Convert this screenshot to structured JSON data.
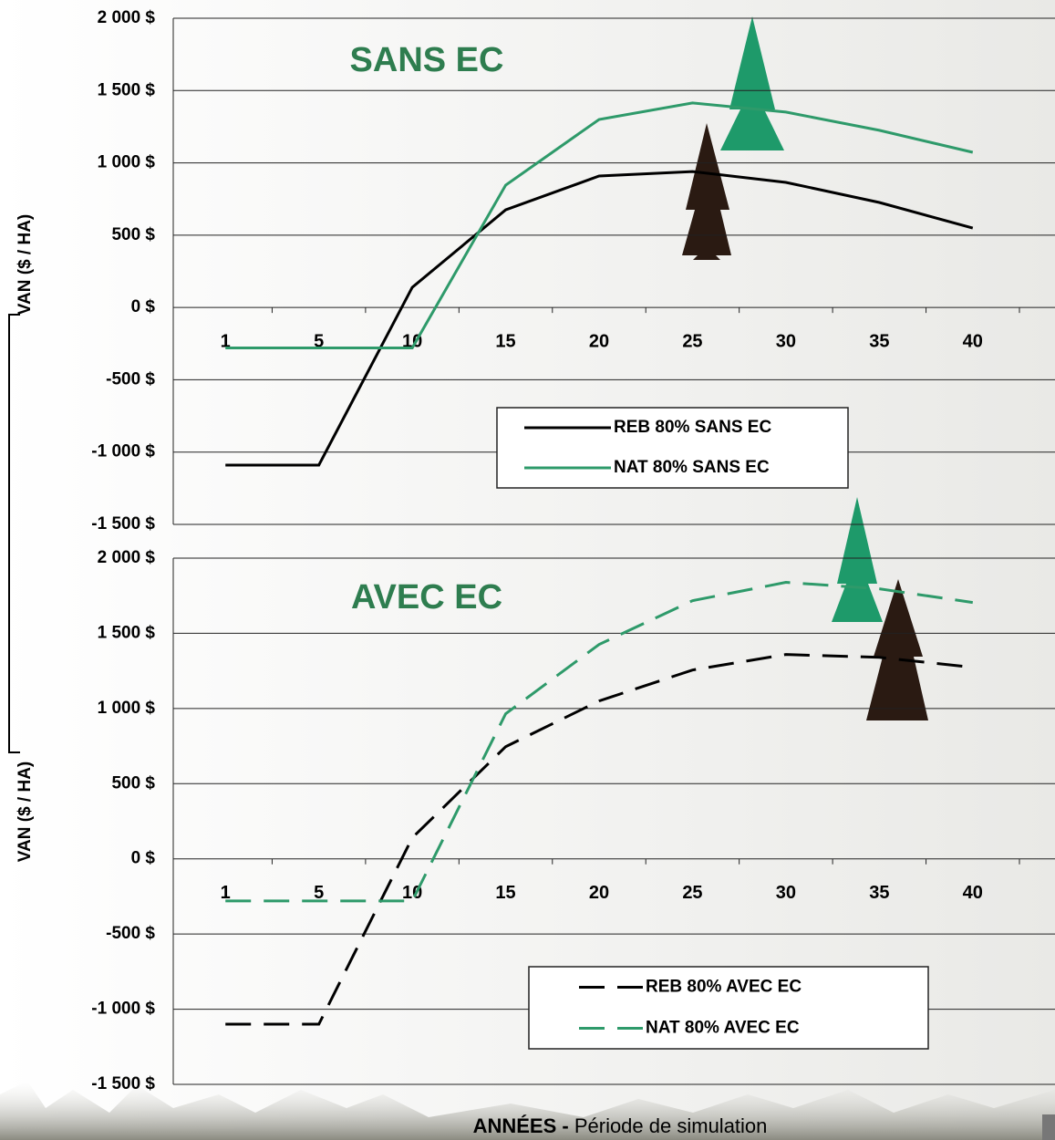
{
  "chart_data": [
    {
      "type": "line",
      "title": "SANS EC",
      "title_color": "#2e7d4f",
      "y_label": "VAN ($ / HA)",
      "categories": [
        "1",
        "5",
        "10",
        "15",
        "20",
        "25",
        "30",
        "35",
        "40"
      ],
      "series": [
        {
          "name": "REB 80% SANS EC",
          "color": "#000000",
          "dash": false,
          "values": [
            -1090,
            -1090,
            139,
            675,
            909,
            940,
            865,
            726,
            549
          ]
        },
        {
          "name": "NAT 80% SANS EC",
          "color": "#2e9a6a",
          "dash": false,
          "values": [
            -280,
            -280,
            -280,
            846,
            1300,
            1414,
            1351,
            1225,
            1073
          ]
        }
      ],
      "ylim": [
        -1500,
        2000
      ],
      "yticks": [
        {
          "value": -1500,
          "label": "-1 500 $"
        },
        {
          "value": -1000,
          "label": "-1 000 $"
        },
        {
          "value": -500,
          "label": "-500 $"
        },
        {
          "value": 0,
          "label": "0 $"
        },
        {
          "value": 500,
          "label": "500 $"
        },
        {
          "value": 1000,
          "label": "1 000 $"
        },
        {
          "value": 1500,
          "label": "1 500 $"
        },
        {
          "value": 2000,
          "label": "2 000 $"
        }
      ],
      "grid": true
    },
    {
      "type": "line",
      "title": "AVEC EC",
      "title_color": "#2e7d4f",
      "y_label": "VAN ($ / HA)",
      "x_label": "ANNÉES -",
      "x_label_detail": "Période de simulation",
      "categories": [
        "1",
        "5",
        "10",
        "15",
        "20",
        "25",
        "30",
        "35",
        "40"
      ],
      "series": [
        {
          "name": "REB 80% AVEC EC",
          "color": "#000000",
          "dash": true,
          "values": [
            -1100,
            -1100,
            140,
            746,
            1050,
            1256,
            1359,
            1340,
            1274
          ]
        },
        {
          "name": "NAT 80% AVEC EC",
          "color": "#2e9a6a",
          "dash": true,
          "values": [
            -280,
            -280,
            -280,
            965,
            1426,
            1717,
            1839,
            1796,
            1705
          ]
        }
      ],
      "ylim": [
        -1500,
        2000
      ],
      "yticks": [
        {
          "value": -1500,
          "label": "-1 500 $"
        },
        {
          "value": -1000,
          "label": "-1 000 $"
        },
        {
          "value": -500,
          "label": "-500 $"
        },
        {
          "value": 0,
          "label": "0 $"
        },
        {
          "value": 500,
          "label": "500 $"
        },
        {
          "value": 1000,
          "label": "1 000 $"
        },
        {
          "value": 1500,
          "label": "1 500 $"
        },
        {
          "value": 2000,
          "label": "2 000 $"
        }
      ],
      "grid": true
    }
  ]
}
